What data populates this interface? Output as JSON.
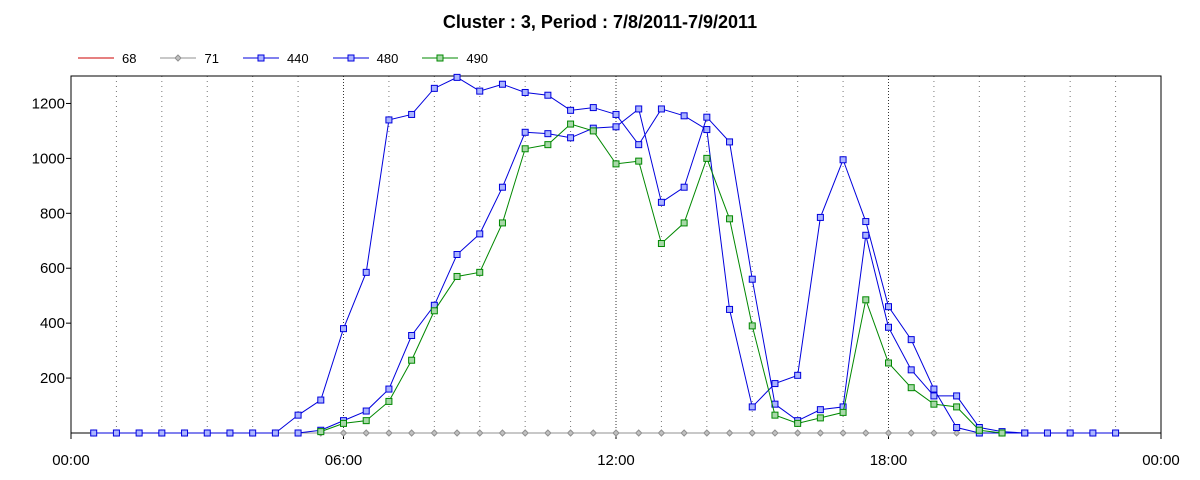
{
  "chart_data": {
    "type": "line",
    "title": "Cluster : 3, Period : 7/8/2011-7/9/2011",
    "xlabel": "",
    "ylabel": "",
    "x_ticks": [
      "00:00",
      "06:00",
      "12:00",
      "18:00",
      "00:00"
    ],
    "x_range_hours": [
      0,
      24
    ],
    "ylim": [
      0,
      1300
    ],
    "y_ticks": [
      200,
      400,
      600,
      800,
      1000,
      1200
    ],
    "grid": "vertical dotted lines every hour, solid at 6-hour marks",
    "legend_position": "top-left",
    "x": [
      0.5,
      1.0,
      1.5,
      2.0,
      2.5,
      3.0,
      3.5,
      4.0,
      4.5,
      5.0,
      5.5,
      6.0,
      6.5,
      7.0,
      7.5,
      8.0,
      8.5,
      9.0,
      9.5,
      10.0,
      10.5,
      11.0,
      11.5,
      12.0,
      12.5,
      13.0,
      13.5,
      14.0,
      14.5,
      15.0,
      15.5,
      16.0,
      16.5,
      17.0,
      17.5,
      18.0,
      18.5,
      19.0,
      19.5,
      20.0,
      20.5,
      21.0,
      21.5,
      22.0,
      22.5,
      23.0
    ],
    "series": [
      {
        "name": "68",
        "color": "#cc0000",
        "marker": "none",
        "values": [
          0,
          0,
          0,
          0,
          0,
          0,
          0,
          0,
          0,
          0,
          0,
          0,
          0,
          0,
          0,
          0,
          0,
          0,
          0,
          0,
          0,
          0,
          0,
          0,
          0,
          0,
          0,
          0,
          0,
          0,
          0,
          0,
          0,
          0,
          0,
          0,
          0,
          0,
          0,
          0,
          0,
          0,
          0,
          0,
          0,
          0
        ]
      },
      {
        "name": "71",
        "color": "#909090",
        "marker": "diamond",
        "values": [
          0,
          0,
          0,
          0,
          0,
          0,
          0,
          0,
          0,
          0,
          0,
          0,
          0,
          0,
          0,
          0,
          0,
          0,
          0,
          0,
          0,
          0,
          0,
          0,
          0,
          0,
          0,
          0,
          0,
          0,
          0,
          0,
          0,
          0,
          0,
          0,
          0,
          0,
          0,
          0,
          0,
          0,
          0,
          0,
          0,
          0
        ]
      },
      {
        "name": "440",
        "color": "#0000dd",
        "marker": "square",
        "fill": "#aab4ff",
        "values": [
          0,
          0,
          0,
          0,
          0,
          0,
          0,
          0,
          0,
          65,
          120,
          380,
          585,
          1140,
          1160,
          1255,
          1295,
          1245,
          1270,
          1240,
          1230,
          1175,
          1185,
          1160,
          1050,
          1180,
          1155,
          1105,
          450,
          95,
          180,
          210,
          785,
          995,
          770,
          460,
          340,
          160,
          20,
          0,
          0,
          0,
          0,
          0,
          0,
          0
        ]
      },
      {
        "name": "480",
        "color": "#0000dd",
        "marker": "square",
        "fill": "#aab4ff",
        "values": [
          null,
          null,
          null,
          null,
          null,
          null,
          null,
          null,
          null,
          0,
          10,
          45,
          80,
          160,
          355,
          465,
          650,
          725,
          895,
          1095,
          1090,
          1075,
          1110,
          1115,
          1180,
          840,
          895,
          1150,
          1060,
          560,
          105,
          45,
          85,
          95,
          720,
          385,
          230,
          135,
          135,
          20,
          5,
          0,
          null,
          null,
          null,
          null
        ]
      },
      {
        "name": "490",
        "color": "#008800",
        "marker": "square",
        "fill": "#a8d8a8",
        "values": [
          null,
          null,
          null,
          null,
          null,
          null,
          null,
          null,
          null,
          null,
          5,
          35,
          45,
          115,
          265,
          445,
          570,
          585,
          765,
          1035,
          1050,
          1125,
          1100,
          980,
          990,
          690,
          765,
          1000,
          780,
          390,
          65,
          35,
          55,
          75,
          485,
          255,
          165,
          105,
          95,
          10,
          0,
          null,
          null,
          null,
          null,
          null
        ]
      }
    ]
  }
}
